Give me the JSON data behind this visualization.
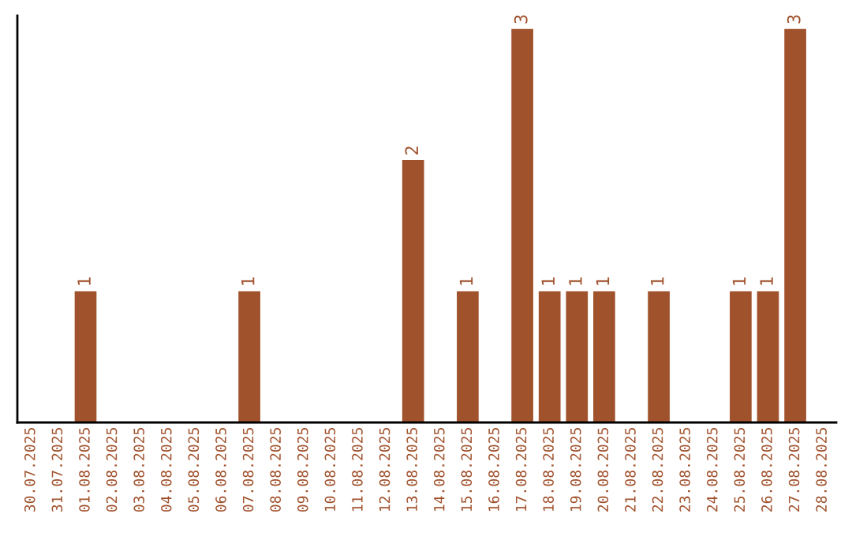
{
  "chart_data": {
    "type": "bar",
    "categories": [
      "30.07.2025",
      "31.07.2025",
      "01.08.2025",
      "02.08.2025",
      "03.08.2025",
      "04.08.2025",
      "05.08.2025",
      "06.08.2025",
      "07.08.2025",
      "08.08.2025",
      "09.08.2025",
      "10.08.2025",
      "11.08.2025",
      "12.08.2025",
      "13.08.2025",
      "14.08.2025",
      "15.08.2025",
      "16.08.2025",
      "17.08.2025",
      "18.08.2025",
      "19.08.2025",
      "20.08.2025",
      "21.08.2025",
      "22.08.2025",
      "23.08.2025",
      "24.08.2025",
      "25.08.2025",
      "26.08.2025",
      "27.08.2025",
      "28.08.2025"
    ],
    "values": [
      0,
      0,
      1,
      0,
      0,
      0,
      0,
      0,
      1,
      0,
      0,
      0,
      0,
      0,
      2,
      0,
      1,
      0,
      3,
      1,
      1,
      1,
      0,
      1,
      0,
      0,
      1,
      1,
      3,
      0
    ],
    "value_labels": [
      null,
      null,
      "1",
      null,
      null,
      null,
      null,
      null,
      "1",
      null,
      null,
      null,
      null,
      null,
      "2",
      null,
      "1",
      null,
      "3",
      "1",
      "1",
      "1",
      null,
      "1",
      null,
      null,
      "1",
      "1",
      "3",
      null
    ],
    "color": "#a0522d",
    "ylim": [
      0,
      3.1
    ],
    "tick_labels": "x",
    "legend": false
  }
}
